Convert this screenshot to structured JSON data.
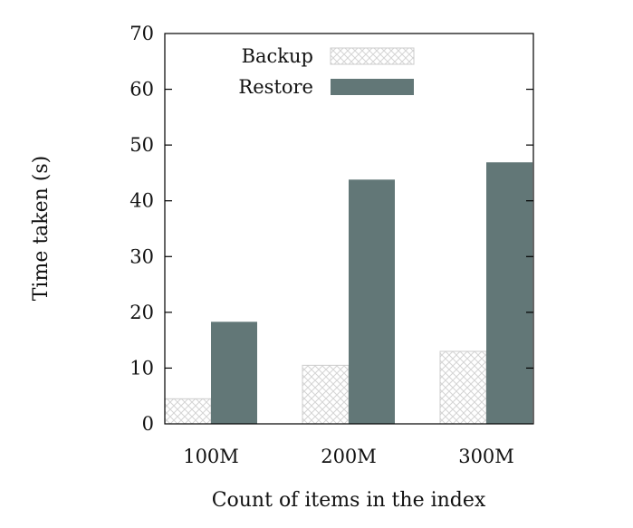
{
  "chart_data": {
    "type": "bar",
    "title": "",
    "xlabel": "Count of items in the index",
    "ylabel": "Time taken (s)",
    "categories": [
      "100M",
      "200M",
      "300M"
    ],
    "ylim": [
      0,
      70
    ],
    "yticks": [
      0,
      10,
      20,
      30,
      40,
      50,
      60,
      70
    ],
    "grid": false,
    "legend_position": "top-left",
    "series": [
      {
        "name": "Backup",
        "values": [
          4.5,
          10.5,
          13.0
        ],
        "color": "#e0e0e0",
        "pattern": "crosshatch"
      },
      {
        "name": "Restore",
        "values": [
          18.3,
          43.8,
          46.9
        ],
        "color": "#627777",
        "pattern": "solid"
      }
    ]
  }
}
